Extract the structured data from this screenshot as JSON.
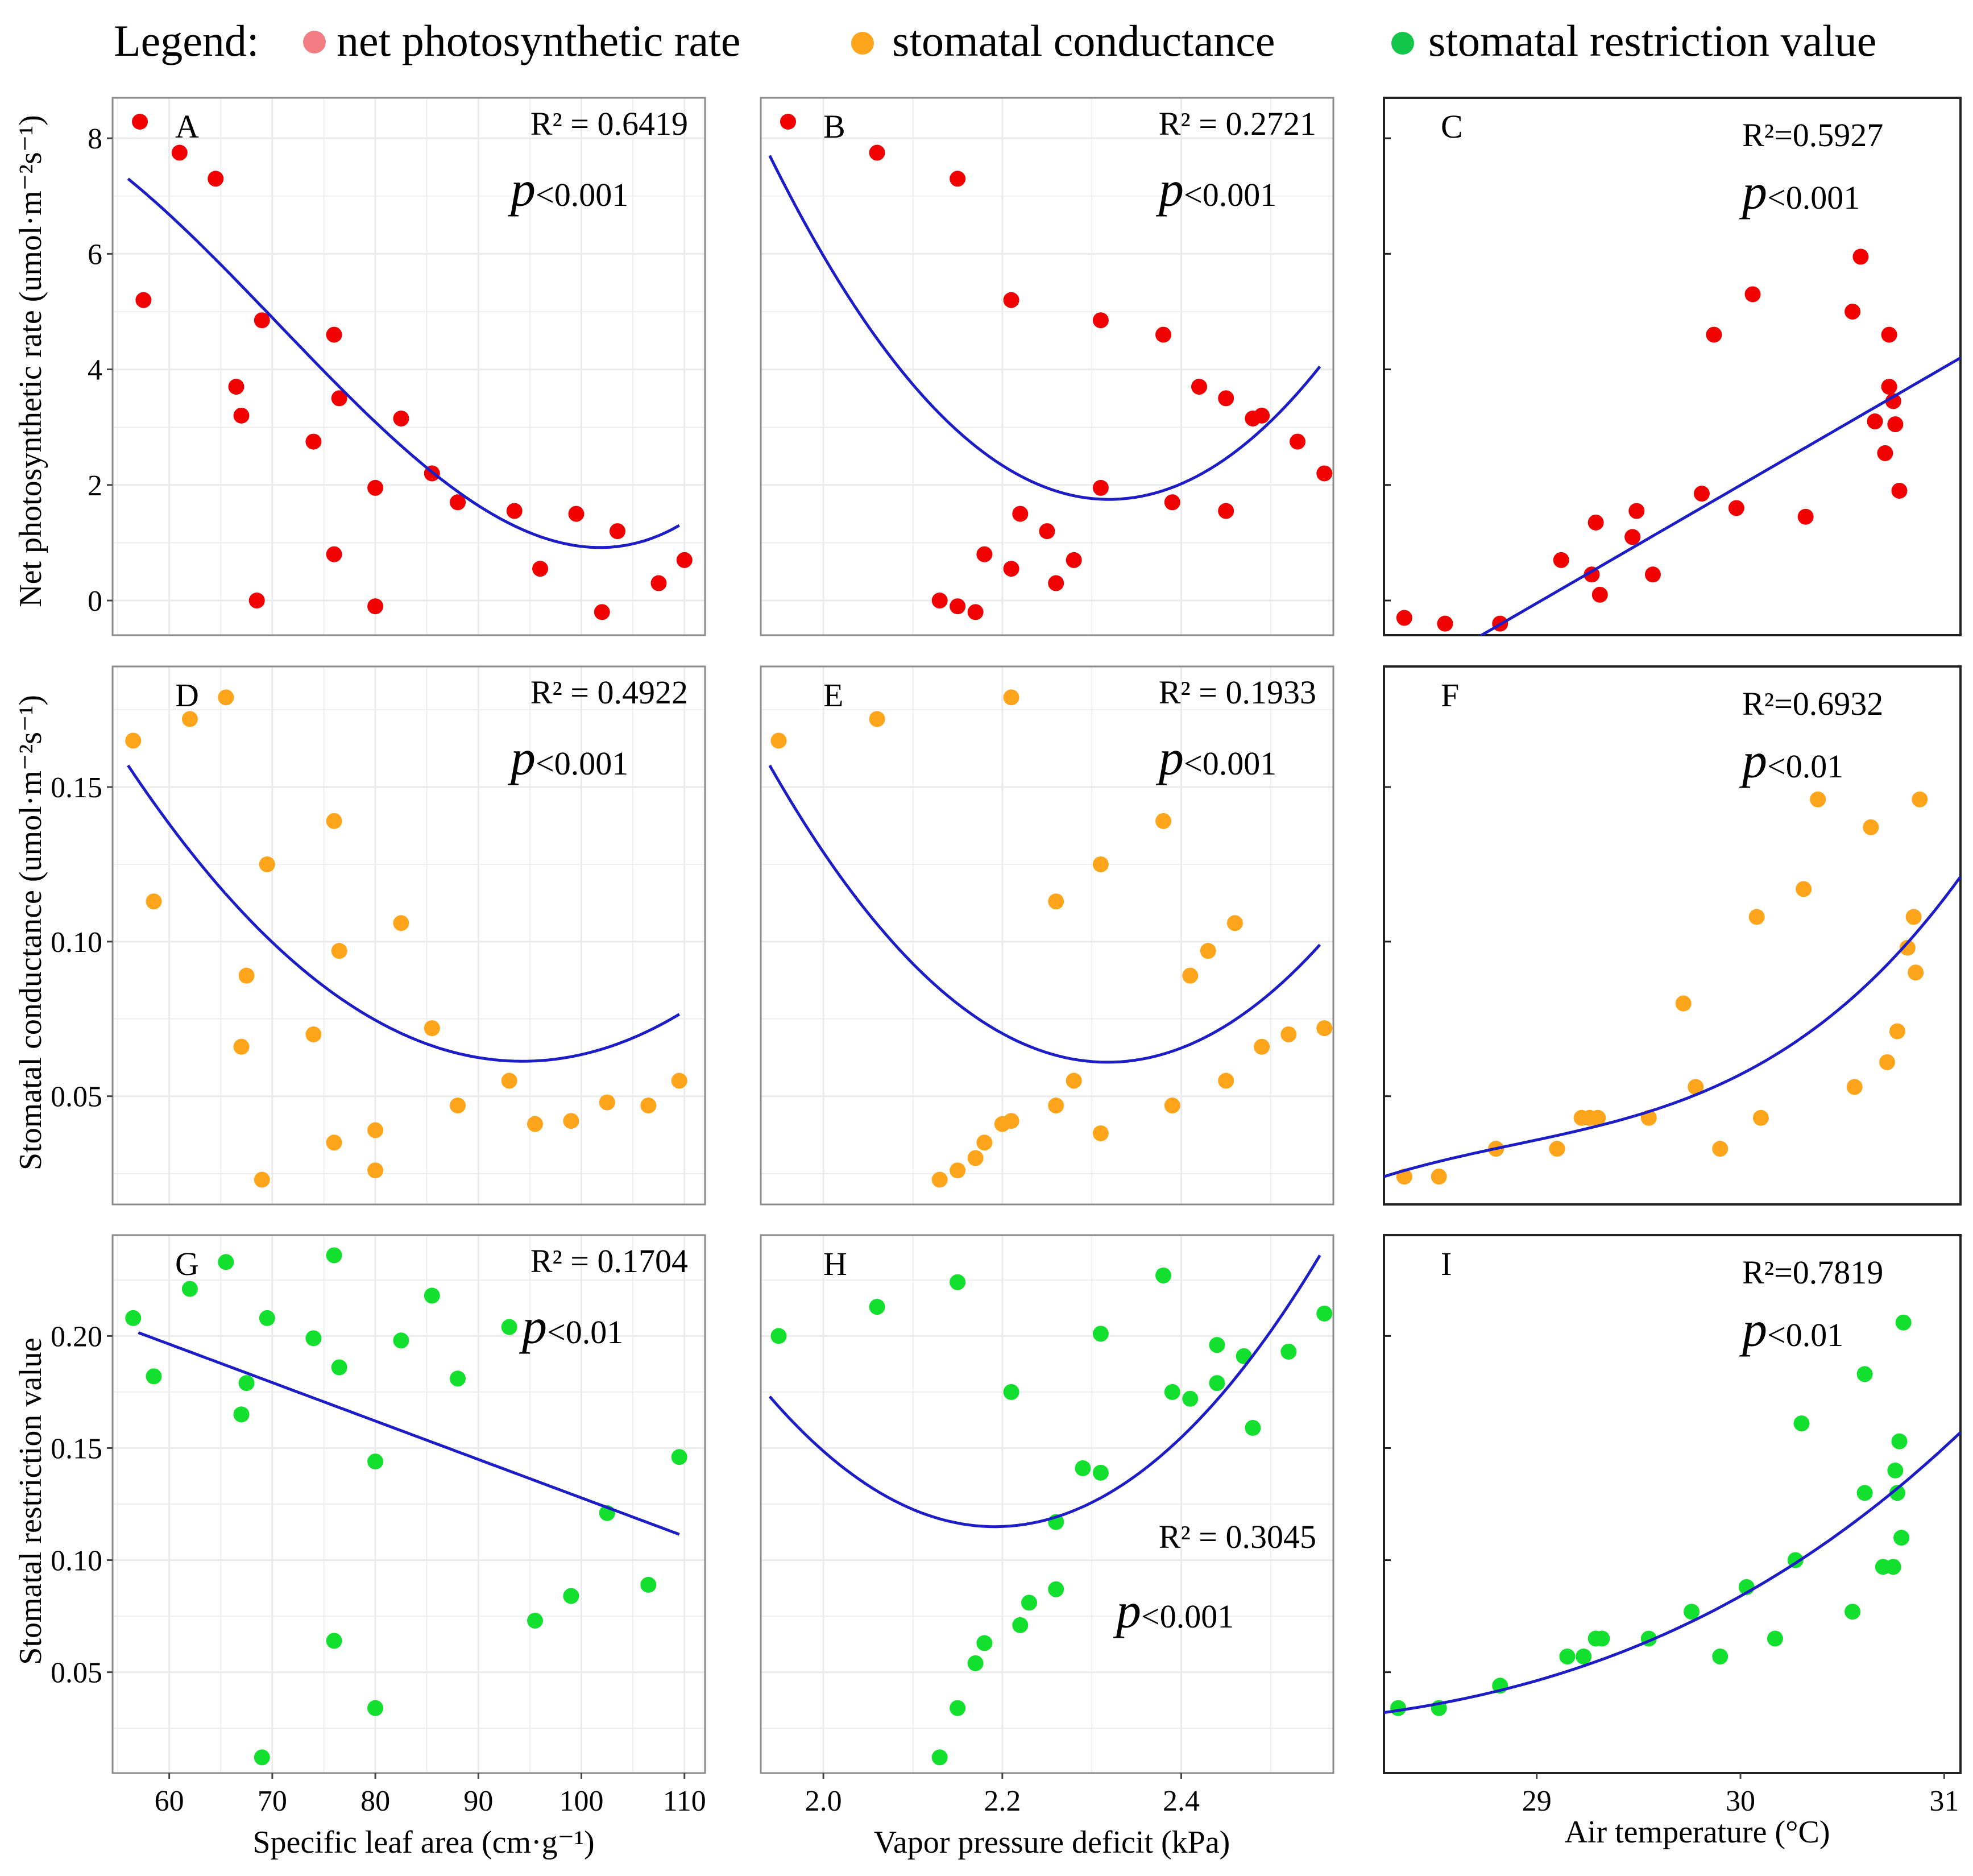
{
  "legend": {
    "title": "Legend:",
    "items": [
      {
        "label": "net photosynthetic rate",
        "color": "#f27d83"
      },
      {
        "label": "stomatal conductance",
        "color": "#ffa51c"
      },
      {
        "label": "stomatal restriction value",
        "color": "#13c649"
      }
    ]
  },
  "axes": {
    "ylabels": [
      "Net photosynthetic rate (umol·m⁻²s⁻¹)",
      "Stomatal conductance (umol·m⁻²s⁻¹)",
      "Stomatal restriction value"
    ],
    "xlabels": [
      "Specific leaf area (cm·g⁻¹)",
      "Vapor pressure deficit (kPa)",
      "Air temperature (°C)"
    ],
    "xranges": [
      [
        54.5,
        112
      ],
      [
        1.93,
        2.57
      ],
      [
        28.25,
        31.08
      ]
    ],
    "yranges": [
      [
        -0.6,
        8.7
      ],
      [
        0.015,
        0.189
      ],
      [
        0.005,
        0.245
      ]
    ],
    "xticks": [
      [
        60,
        70,
        80,
        90,
        100,
        110
      ],
      [
        2.0,
        2.2,
        2.4
      ],
      [
        29,
        30,
        31
      ]
    ],
    "xtick_labels": [
      [
        "60",
        "70",
        "80",
        "90",
        "100",
        "110"
      ],
      [
        "2.0",
        "2.2",
        "2.4"
      ],
      [
        "29",
        "30",
        "31"
      ]
    ],
    "yticks": [
      [
        0,
        2,
        4,
        6,
        8
      ],
      [
        0.05,
        0.1,
        0.15
      ],
      [
        0.05,
        0.1,
        0.15,
        0.2
      ]
    ],
    "ytick_labels": [
      [
        "0",
        "2",
        "4",
        "6",
        "8"
      ],
      [
        "0.05",
        "0.10",
        "0.15"
      ],
      [
        "0.05",
        "0.10",
        "0.15",
        "0.20"
      ]
    ]
  },
  "chart_data": [
    {
      "panel": "A",
      "type": "scatter",
      "row": 0,
      "col": 0,
      "color": "#f00000",
      "r2": "R² = 0.6419",
      "p": "<0.001",
      "fit": {
        "kind": "quadratic",
        "x": [
          56,
          109.5
        ],
        "points": [
          [
            56,
            7.3
          ],
          [
            83,
            2.6
          ],
          [
            98,
            1.0
          ],
          [
            109.5,
            1.3
          ]
        ]
      },
      "x": [
        57.5,
        61.0,
        64.5,
        66.5,
        67.0,
        68.5,
        69.0,
        74.0,
        76.0,
        76.0,
        76.5,
        80.0,
        80.0,
        82.5,
        85.5,
        88.0,
        93.5,
        96.0,
        99.5,
        102.0,
        103.5,
        107.5,
        110.0
      ],
      "y": [
        5.2,
        7.75,
        7.3,
        3.7,
        3.2,
        0.0,
        4.85,
        2.75,
        4.6,
        0.8,
        3.5,
        1.95,
        -0.1,
        3.15,
        2.2,
        1.7,
        1.55,
        0.55,
        1.5,
        -0.2,
        1.2,
        0.3,
        0.7
      ]
    },
    {
      "panel": "B",
      "type": "scatter",
      "row": 0,
      "col": 1,
      "color": "#f00000",
      "r2": "R² = 0.2721",
      "p": "<0.001",
      "fit": {
        "kind": "quadratic",
        "x": [
          1.94,
          2.555
        ],
        "points": [
          [
            1.94,
            7.7
          ],
          [
            2.32,
            1.75
          ],
          [
            2.555,
            4.05
          ]
        ]
      },
      "x": [
        2.06,
        2.15,
        2.21,
        2.13,
        2.15,
        2.17,
        2.18,
        2.21,
        2.22,
        2.25,
        2.26,
        2.28,
        2.31,
        2.31,
        2.38,
        2.39,
        2.42,
        2.45,
        2.45,
        2.48,
        2.49,
        2.53,
        2.56
      ],
      "y": [
        7.75,
        7.3,
        5.2,
        0.0,
        -0.1,
        -0.2,
        0.8,
        0.55,
        1.5,
        1.2,
        0.3,
        0.7,
        1.95,
        4.85,
        4.6,
        1.7,
        3.7,
        3.5,
        1.55,
        3.15,
        3.2,
        2.75,
        2.2
      ]
    },
    {
      "panel": "C",
      "type": "scatter",
      "row": 0,
      "col": 2,
      "color": "#f00000",
      "r2": "R²=0.5927",
      "p": "<0.001",
      "fit": {
        "kind": "linear",
        "x": [
          28.68,
          31.08
        ],
        "points": [
          [
            28.68,
            -0.7
          ],
          [
            31.08,
            4.2
          ]
        ]
      },
      "x": [
        28.35,
        28.55,
        28.82,
        29.12,
        29.27,
        29.29,
        29.31,
        29.47,
        29.49,
        29.57,
        29.81,
        29.87,
        29.98,
        30.06,
        30.32,
        30.55,
        30.59,
        30.66,
        30.71,
        30.73,
        30.73,
        30.75,
        30.76,
        30.78
      ],
      "y": [
        -0.3,
        -0.4,
        -0.4,
        0.7,
        0.45,
        1.35,
        0.1,
        1.1,
        1.55,
        0.45,
        1.85,
        4.6,
        1.6,
        5.3,
        1.45,
        5.0,
        5.95,
        3.1,
        2.55,
        3.7,
        4.6,
        3.45,
        3.05,
        1.9
      ]
    },
    {
      "panel": "D",
      "type": "scatter",
      "row": 1,
      "col": 0,
      "color": "#ffa51c",
      "r2": "R² = 0.4922",
      "p": "<0.001",
      "fit": {
        "kind": "quadratic",
        "x": [
          56,
          109.5
        ],
        "points": [
          [
            56,
            0.157
          ],
          [
            91,
            0.062
          ],
          [
            109.5,
            0.0765
          ]
        ]
      },
      "x": [
        56.5,
        58.5,
        62.0,
        65.5,
        67.0,
        67.5,
        69.0,
        69.5,
        74.0,
        76.0,
        76.0,
        76.5,
        80.0,
        80.0,
        82.5,
        85.5,
        88.0,
        93.0,
        95.5,
        99.0,
        102.5,
        106.5,
        109.5
      ],
      "y": [
        0.165,
        0.113,
        0.172,
        0.179,
        0.066,
        0.089,
        0.023,
        0.125,
        0.07,
        0.139,
        0.035,
        0.097,
        0.039,
        0.026,
        0.106,
        0.072,
        0.047,
        0.055,
        0.041,
        0.042,
        0.048,
        0.047,
        0.055
      ]
    },
    {
      "panel": "E",
      "type": "scatter",
      "row": 1,
      "col": 1,
      "color": "#ffa51c",
      "r2": "R² = 0.1933",
      "p": "<0.001",
      "fit": {
        "kind": "quadratic",
        "x": [
          1.94,
          2.555
        ],
        "points": [
          [
            1.94,
            0.157
          ],
          [
            2.315,
            0.061
          ],
          [
            2.555,
            0.099
          ]
        ]
      },
      "x": [
        1.95,
        2.06,
        2.21,
        2.26,
        2.26,
        2.28,
        2.31,
        2.31,
        2.38,
        2.39,
        2.41,
        2.43,
        2.45,
        2.46,
        2.49,
        2.52,
        2.56,
        2.13,
        2.15,
        2.17,
        2.18,
        2.2,
        2.21
      ],
      "y": [
        0.165,
        0.172,
        0.179,
        0.113,
        0.047,
        0.055,
        0.125,
        0.038,
        0.139,
        0.047,
        0.089,
        0.097,
        0.055,
        0.106,
        0.066,
        0.07,
        0.072,
        0.023,
        0.026,
        0.03,
        0.035,
        0.041,
        0.042
      ]
    },
    {
      "panel": "F",
      "type": "scatter",
      "row": 1,
      "col": 2,
      "color": "#ffa51c",
      "r2": "R²=0.6932",
      "p": "<0.01",
      "fit": {
        "kind": "exp",
        "x": [
          28.25,
          31.08
        ],
        "points": [
          [
            28.25,
            0.024
          ],
          [
            29.5,
            0.044
          ],
          [
            30.5,
            0.079
          ],
          [
            31.08,
            0.121
          ]
        ]
      },
      "x": [
        28.35,
        28.52,
        28.8,
        29.1,
        29.22,
        29.26,
        29.3,
        29.55,
        29.72,
        29.78,
        29.9,
        30.08,
        30.1,
        30.31,
        30.38,
        30.56,
        30.64,
        30.72,
        30.77,
        30.82,
        30.85,
        30.86,
        30.88
      ],
      "y": [
        0.024,
        0.024,
        0.033,
        0.033,
        0.043,
        0.043,
        0.043,
        0.043,
        0.08,
        0.053,
        0.033,
        0.108,
        0.043,
        0.117,
        0.146,
        0.053,
        0.137,
        0.061,
        0.071,
        0.098,
        0.108,
        0.09,
        0.146
      ]
    },
    {
      "panel": "G",
      "type": "scatter",
      "row": 2,
      "col": 0,
      "color": "#13e02e",
      "r2": "R² = 0.1704",
      "p": "<0.01",
      "fit": {
        "kind": "linear",
        "x": [
          57,
          109.5
        ],
        "points": [
          [
            57,
            0.2015
          ],
          [
            109.5,
            0.1115
          ]
        ]
      },
      "x": [
        56.5,
        58.5,
        62.0,
        65.5,
        67.0,
        67.5,
        69.0,
        69.5,
        74.0,
        76.0,
        76.0,
        76.5,
        80.0,
        80.0,
        82.5,
        85.5,
        88.0,
        93.0,
        95.5,
        99.0,
        102.5,
        106.5,
        109.5
      ],
      "y": [
        0.208,
        0.182,
        0.221,
        0.233,
        0.165,
        0.179,
        0.012,
        0.208,
        0.199,
        0.236,
        0.064,
        0.186,
        0.144,
        0.034,
        0.198,
        0.218,
        0.181,
        0.204,
        0.073,
        0.084,
        0.121,
        0.089,
        0.146
      ]
    },
    {
      "panel": "H",
      "type": "scatter",
      "row": 2,
      "col": 1,
      "color": "#13e02e",
      "r2": "R² = 0.3045",
      "p": "<0.001",
      "fit": {
        "kind": "quadratic",
        "x": [
          1.94,
          2.555
        ],
        "points": [
          [
            1.94,
            0.173
          ],
          [
            2.2,
            0.115
          ],
          [
            2.555,
            0.236
          ]
        ]
      },
      "x": [
        1.95,
        2.06,
        2.15,
        2.13,
        2.15,
        2.17,
        2.18,
        2.21,
        2.22,
        2.23,
        2.26,
        2.26,
        2.29,
        2.31,
        2.31,
        2.38,
        2.39,
        2.41,
        2.44,
        2.44,
        2.47,
        2.48,
        2.52,
        2.56
      ],
      "y": [
        0.2,
        0.213,
        0.224,
        0.012,
        0.034,
        0.054,
        0.063,
        0.175,
        0.071,
        0.081,
        0.117,
        0.087,
        0.141,
        0.139,
        0.201,
        0.227,
        0.175,
        0.172,
        0.179,
        0.196,
        0.191,
        0.159,
        0.193,
        0.21
      ]
    },
    {
      "panel": "I",
      "type": "scatter",
      "row": 2,
      "col": 2,
      "color": "#13e02e",
      "r2": "R²=0.7819",
      "p": "<0.01",
      "fit": {
        "kind": "exp",
        "x": [
          28.25,
          31.08
        ],
        "points": [
          [
            28.25,
            0.032
          ],
          [
            29.5,
            0.062
          ],
          [
            30.5,
            0.113
          ],
          [
            31.08,
            0.157
          ]
        ]
      },
      "x": [
        28.32,
        28.52,
        28.82,
        29.15,
        29.23,
        29.29,
        29.32,
        29.55,
        29.76,
        29.9,
        30.03,
        30.17,
        30.27,
        30.3,
        30.55,
        30.61,
        30.61,
        30.7,
        30.75,
        30.76,
        30.77,
        30.78,
        30.79,
        30.8
      ],
      "y": [
        0.034,
        0.034,
        0.044,
        0.057,
        0.057,
        0.065,
        0.065,
        0.065,
        0.077,
        0.057,
        0.088,
        0.065,
        0.1,
        0.161,
        0.077,
        0.183,
        0.13,
        0.097,
        0.097,
        0.14,
        0.13,
        0.153,
        0.11,
        0.206
      ]
    }
  ]
}
